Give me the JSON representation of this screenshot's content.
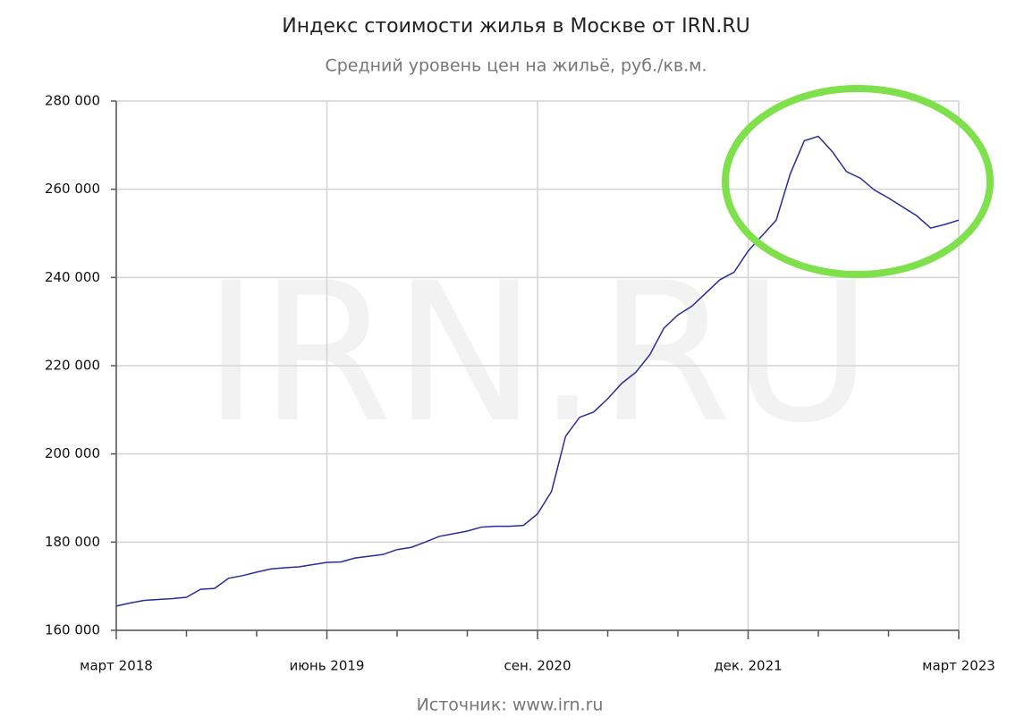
{
  "chart_data": {
    "type": "line",
    "title": "Индекс стоимости жилья в Москве от IRN.RU",
    "subtitle": "Средний уровень цен на жильё, руб./кв.м.",
    "watermark": "IRN.RU",
    "source": "Источник: www.irn.ru",
    "x": [
      "2018-03",
      "2018-04",
      "2018-05",
      "2018-06",
      "2018-07",
      "2018-08",
      "2018-09",
      "2018-10",
      "2018-11",
      "2018-12",
      "2019-01",
      "2019-02",
      "2019-03",
      "2019-04",
      "2019-05",
      "2019-06",
      "2019-07",
      "2019-08",
      "2019-09",
      "2019-10",
      "2019-11",
      "2019-12",
      "2020-01",
      "2020-02",
      "2020-03",
      "2020-04",
      "2020-05",
      "2020-06",
      "2020-07",
      "2020-08",
      "2020-09",
      "2020-10",
      "2020-11",
      "2020-12",
      "2021-01",
      "2021-02",
      "2021-03",
      "2021-04",
      "2021-05",
      "2021-06",
      "2021-07",
      "2021-08",
      "2021-09",
      "2021-10",
      "2021-11",
      "2021-12",
      "2022-01",
      "2022-02",
      "2022-03",
      "2022-04",
      "2022-05",
      "2022-06",
      "2022-07",
      "2022-08",
      "2022-09",
      "2022-10",
      "2022-11",
      "2022-12",
      "2023-01",
      "2023-02",
      "2023-03"
    ],
    "series": [
      {
        "name": "Индекс",
        "color": "#2b2b9a",
        "values": [
          165500,
          166200,
          166800,
          167000,
          167200,
          167500,
          169300,
          169500,
          171800,
          172400,
          173200,
          173900,
          174200,
          174400,
          174900,
          175400,
          175500,
          176400,
          176800,
          177200,
          178300,
          178800,
          180000,
          181300,
          181900,
          182500,
          183400,
          183600,
          183600,
          183800,
          186400,
          191500,
          204000,
          208300,
          209500,
          212500,
          216000,
          218500,
          222500,
          228500,
          231500,
          233500,
          236500,
          239500,
          241200,
          246000,
          249500,
          253000,
          263500,
          271000,
          272000,
          268500,
          264000,
          262500,
          259800,
          258000,
          256000,
          254000,
          251200,
          252000,
          253000
        ]
      }
    ],
    "xlim": [
      "2018-03",
      "2023-03"
    ],
    "xticks": [
      {
        "value": "2018-03",
        "label": "март 2018"
      },
      "2018-08",
      "2019-01",
      {
        "value": "2019-06",
        "label": "июнь 2019"
      },
      "2019-11",
      "2020-04",
      {
        "value": "2020-09",
        "label": "сен. 2020"
      },
      "2021-02",
      "2021-07",
      {
        "value": "2021-12",
        "label": "дек. 2021"
      },
      "2022-05",
      "2022-10",
      {
        "value": "2023-03",
        "label": "март 2023"
      }
    ],
    "ylim": [
      160000,
      280000
    ],
    "yticks": [
      {
        "value": 160000,
        "label": "160 000"
      },
      {
        "value": 180000,
        "label": "180 000"
      },
      {
        "value": 200000,
        "label": "200 000"
      },
      {
        "value": 220000,
        "label": "220 000"
      },
      {
        "value": 240000,
        "label": "240 000"
      },
      {
        "value": 260000,
        "label": "260 000"
      },
      {
        "value": 280000,
        "label": "280 000"
      }
    ],
    "grid": true
  }
}
